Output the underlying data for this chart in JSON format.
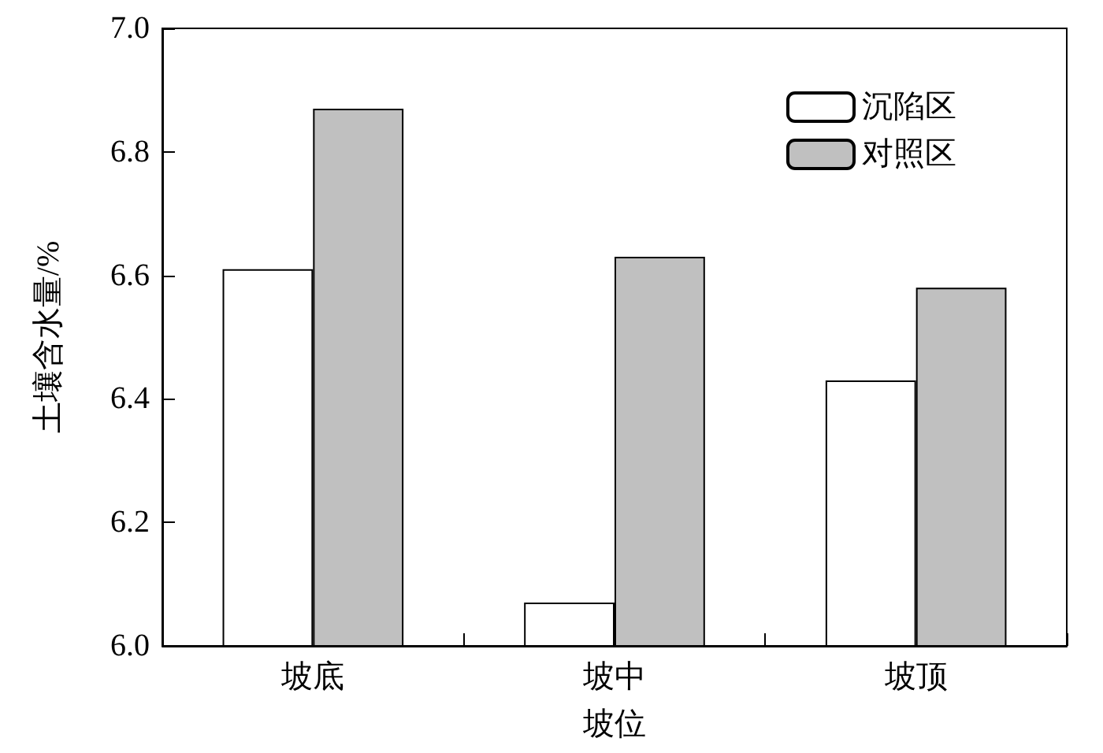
{
  "chart_data": {
    "type": "bar",
    "xlabel": "坡位",
    "ylabel": "土壤含水量/%",
    "categories": [
      "坡底",
      "坡中",
      "坡顶"
    ],
    "series": [
      {
        "name": "沉陷区",
        "color": "#ffffff",
        "values": [
          6.61,
          6.07,
          6.43
        ]
      },
      {
        "name": "对照区",
        "color": "#c0c0c0",
        "values": [
          6.87,
          6.63,
          6.58
        ]
      }
    ],
    "ylim": [
      6.0,
      7.0
    ],
    "yticks": [
      {
        "value": 6.0,
        "label": "6.0"
      },
      {
        "value": 6.2,
        "label": "6.2"
      },
      {
        "value": 6.4,
        "label": "6.4"
      },
      {
        "value": 6.6,
        "label": "6.6"
      },
      {
        "value": 6.8,
        "label": "6.8"
      },
      {
        "value": 7.0,
        "label": "7.0"
      }
    ],
    "grid": false,
    "legend": "top right"
  }
}
